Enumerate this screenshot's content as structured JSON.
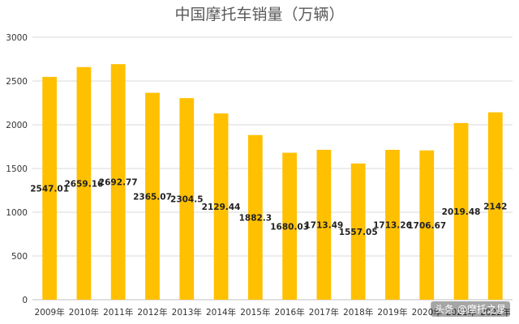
{
  "chart_data": {
    "type": "bar",
    "title": "中国摩托车销量（万辆）",
    "categories": [
      "2009年",
      "2010年",
      "2011年",
      "2012年",
      "2013年",
      "2014年",
      "2015年",
      "2016年",
      "2017年",
      "2018年",
      "2019年",
      "2020年",
      "2021年",
      "2022年"
    ],
    "values": [
      2547.01,
      2659.16,
      2692.77,
      2365.07,
      2304.5,
      2129.44,
      1882.3,
      1680.03,
      1713.49,
      1557.05,
      1713.26,
      1706.67,
      2019.48,
      2142
    ],
    "value_labels": [
      "2547.01",
      "2659.16",
      "2692.77",
      "2365.07",
      "2304.5",
      "2129.44",
      "1882.3",
      "1680.03",
      "1713.49",
      "1557.05",
      "1713.26",
      "1706.67",
      "2019.48",
      "2142"
    ],
    "ylim": [
      0,
      3000
    ],
    "yticks": [
      0,
      500,
      1000,
      1500,
      2000,
      2500,
      3000
    ],
    "grid": true,
    "legend": "none",
    "bar_color": "#FFC000"
  },
  "watermark": "头条 @摩托之星"
}
